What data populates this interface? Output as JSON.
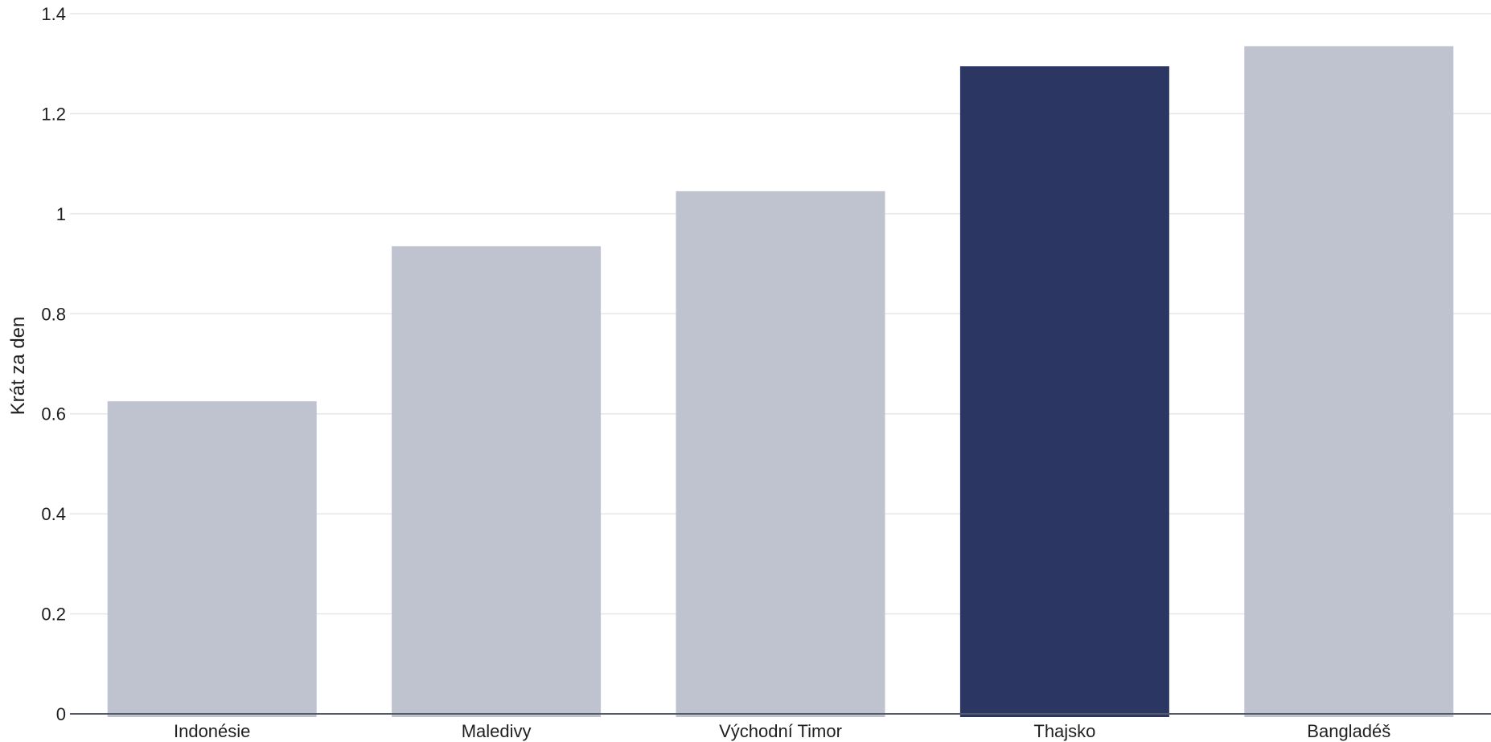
{
  "chart_data": {
    "type": "bar",
    "title": "",
    "xlabel": "",
    "ylabel": "Krát za den",
    "categories": [
      "Indonésie",
      "Maledivy",
      "Východní Timor",
      "Thajsko",
      "Bangladéš"
    ],
    "values": [
      0.625,
      0.935,
      1.045,
      1.295,
      1.335
    ],
    "highlighted_category": "Thajsko",
    "ylim": [
      0,
      1.4
    ],
    "yticks": [
      0,
      0.2,
      0.4,
      0.6,
      0.8,
      1,
      1.2,
      1.4
    ],
    "ytick_labels": [
      "0",
      "0.2",
      "0.4",
      "0.6",
      "0.8",
      "1",
      "1.2",
      "1.4"
    ],
    "grid": true,
    "legend": "none"
  },
  "colors": {
    "highlight_bar": "#2b3662",
    "muted_bar": "#bfc3cf",
    "gridline": "#e6e6e6",
    "baseline": "#555a66",
    "text": "#1f1f1f"
  }
}
